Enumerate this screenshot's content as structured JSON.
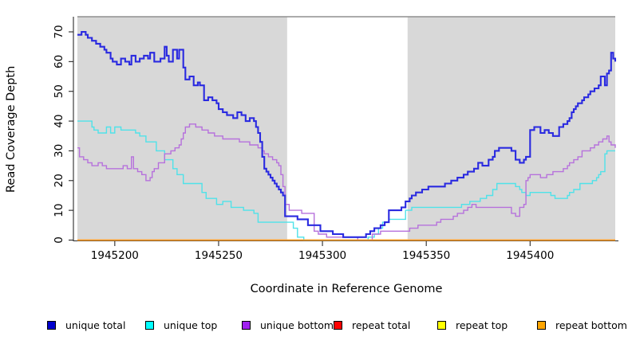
{
  "figure": {
    "x_axis_title": "Coordinate in Reference Genome",
    "y_axis_title": "Read Coverage Depth"
  },
  "legend": {
    "items": [
      {
        "label": "unique total",
        "swatch_color": "#0000cd",
        "x": 59
      },
      {
        "label": "unique top",
        "swatch_color": "#00ffff",
        "x": 182
      },
      {
        "label": "unique bottom",
        "swatch_color": "#a020f0",
        "x": 303
      },
      {
        "label": "repeat total",
        "swatch_color": "#ff0000",
        "x": 418
      },
      {
        "label": "repeat top",
        "swatch_color": "#ffff00",
        "x": 548
      },
      {
        "label": "repeat bottom",
        "swatch_color": "#ffa500",
        "x": 673
      }
    ]
  },
  "chart_data": {
    "type": "line",
    "step": true,
    "title": "",
    "xlabel": "Coordinate in Reference Genome",
    "ylabel": "Read Coverage Depth",
    "xlim": [
      1945182,
      1945441
    ],
    "ylim": [
      0,
      70
    ],
    "x_ticks": [
      1945200,
      1945250,
      1945300,
      1945350,
      1945400
    ],
    "y_ticks": [
      0,
      10,
      20,
      30,
      40,
      50,
      60,
      70
    ],
    "grid": false,
    "legend_position": "bottom",
    "background": {
      "plot_bg": "#d8d8d8",
      "highlight_region": {
        "x0": 1945283,
        "x1": 1945341,
        "color": "#ffffff"
      },
      "top_border_color": "#8f8f8f",
      "axis_color": "#2a2a2a"
    },
    "series": [
      {
        "name": "unique total",
        "color": "#0000cd",
        "line_color": "#2a2ae0",
        "width": 2.1,
        "points": [
          [
            1945182,
            69
          ],
          [
            1945184,
            70
          ],
          [
            1945186,
            69
          ],
          [
            1945187,
            68
          ],
          [
            1945189,
            67
          ],
          [
            1945191,
            66
          ],
          [
            1945193,
            65
          ],
          [
            1945195,
            64
          ],
          [
            1945196,
            63
          ],
          [
            1945198,
            61
          ],
          [
            1945199,
            60
          ],
          [
            1945201,
            59
          ],
          [
            1945203,
            61
          ],
          [
            1945205,
            60
          ],
          [
            1945207,
            59
          ],
          [
            1945208,
            62
          ],
          [
            1945210,
            60
          ],
          [
            1945212,
            61
          ],
          [
            1945214,
            62
          ],
          [
            1945216,
            61
          ],
          [
            1945217,
            63
          ],
          [
            1945219,
            60
          ],
          [
            1945222,
            61
          ],
          [
            1945224,
            65
          ],
          [
            1945225,
            62
          ],
          [
            1945226,
            60
          ],
          [
            1945228,
            64
          ],
          [
            1945230,
            61
          ],
          [
            1945231,
            64
          ],
          [
            1945233,
            58
          ],
          [
            1945234,
            54
          ],
          [
            1945236,
            55
          ],
          [
            1945238,
            52
          ],
          [
            1945240,
            53
          ],
          [
            1945241,
            52
          ],
          [
            1945243,
            47
          ],
          [
            1945245,
            48
          ],
          [
            1945247,
            47
          ],
          [
            1945249,
            46
          ],
          [
            1945250,
            44
          ],
          [
            1945252,
            43
          ],
          [
            1945254,
            42
          ],
          [
            1945257,
            41
          ],
          [
            1945259,
            43
          ],
          [
            1945261,
            42
          ],
          [
            1945263,
            40
          ],
          [
            1945265,
            41
          ],
          [
            1945267,
            40
          ],
          [
            1945268,
            38
          ],
          [
            1945269,
            36
          ],
          [
            1945270,
            33
          ],
          [
            1945271,
            28
          ],
          [
            1945272,
            24
          ],
          [
            1945273,
            23
          ],
          [
            1945274,
            22
          ],
          [
            1945275,
            21
          ],
          [
            1945276,
            20
          ],
          [
            1945277,
            19
          ],
          [
            1945278,
            18
          ],
          [
            1945279,
            17
          ],
          [
            1945280,
            16
          ],
          [
            1945281,
            15
          ],
          [
            1945282,
            8
          ],
          [
            1945288,
            7
          ],
          [
            1945293,
            5
          ],
          [
            1945299,
            3
          ],
          [
            1945305,
            2
          ],
          [
            1945310,
            1
          ],
          [
            1945321,
            2
          ],
          [
            1945323,
            3
          ],
          [
            1945325,
            4
          ],
          [
            1945328,
            5
          ],
          [
            1945330,
            6
          ],
          [
            1945332,
            10
          ],
          [
            1945338,
            11
          ],
          [
            1945340,
            13
          ],
          [
            1945342,
            14
          ],
          [
            1945343,
            15
          ],
          [
            1945345,
            16
          ],
          [
            1945348,
            17
          ],
          [
            1945351,
            18
          ],
          [
            1945359,
            19
          ],
          [
            1945362,
            20
          ],
          [
            1945365,
            21
          ],
          [
            1945368,
            22
          ],
          [
            1945370,
            23
          ],
          [
            1945373,
            24
          ],
          [
            1945375,
            26
          ],
          [
            1945377,
            25
          ],
          [
            1945380,
            27
          ],
          [
            1945382,
            28
          ],
          [
            1945383,
            30
          ],
          [
            1945385,
            31
          ],
          [
            1945391,
            30
          ],
          [
            1945393,
            27
          ],
          [
            1945395,
            26
          ],
          [
            1945397,
            27
          ],
          [
            1945398,
            28
          ],
          [
            1945400,
            37
          ],
          [
            1945402,
            38
          ],
          [
            1945405,
            36
          ],
          [
            1945407,
            37
          ],
          [
            1945409,
            36
          ],
          [
            1945411,
            35
          ],
          [
            1945414,
            38
          ],
          [
            1945416,
            39
          ],
          [
            1945418,
            40
          ],
          [
            1945419,
            41
          ],
          [
            1945420,
            43
          ],
          [
            1945421,
            44
          ],
          [
            1945422,
            45
          ],
          [
            1945423,
            46
          ],
          [
            1945425,
            47
          ],
          [
            1945426,
            48
          ],
          [
            1945428,
            49
          ],
          [
            1945429,
            50
          ],
          [
            1945431,
            51
          ],
          [
            1945433,
            52
          ],
          [
            1945434,
            55
          ],
          [
            1945436,
            52
          ],
          [
            1945437,
            56
          ],
          [
            1945438,
            57
          ],
          [
            1945439,
            63
          ],
          [
            1945440,
            61
          ],
          [
            1945441,
            60
          ]
        ]
      },
      {
        "name": "unique top",
        "color": "#00ffff",
        "line_color": "#4fe2e9",
        "width": 1.4,
        "points": [
          [
            1945182,
            40
          ],
          [
            1945189,
            38
          ],
          [
            1945190,
            37
          ],
          [
            1945192,
            36
          ],
          [
            1945196,
            38
          ],
          [
            1945198,
            36
          ],
          [
            1945200,
            38
          ],
          [
            1945203,
            37
          ],
          [
            1945210,
            36
          ],
          [
            1945212,
            35
          ],
          [
            1945215,
            33
          ],
          [
            1945220,
            30
          ],
          [
            1945224,
            27
          ],
          [
            1945228,
            24
          ],
          [
            1945230,
            22
          ],
          [
            1945233,
            19
          ],
          [
            1945242,
            16
          ],
          [
            1945244,
            14
          ],
          [
            1945249,
            12
          ],
          [
            1945252,
            13
          ],
          [
            1945256,
            11
          ],
          [
            1945262,
            10
          ],
          [
            1945267,
            9
          ],
          [
            1945269,
            6
          ],
          [
            1945286,
            4
          ],
          [
            1945288,
            1
          ],
          [
            1945291,
            0
          ],
          [
            1945322,
            1
          ],
          [
            1945325,
            2
          ],
          [
            1945327,
            4
          ],
          [
            1945329,
            6
          ],
          [
            1945332,
            7
          ],
          [
            1945340,
            10
          ],
          [
            1945343,
            11
          ],
          [
            1945367,
            12
          ],
          [
            1945371,
            13
          ],
          [
            1945376,
            14
          ],
          [
            1945379,
            15
          ],
          [
            1945382,
            17
          ],
          [
            1945384,
            19
          ],
          [
            1945393,
            18
          ],
          [
            1945395,
            17
          ],
          [
            1945396,
            16
          ],
          [
            1945398,
            15
          ],
          [
            1945400,
            16
          ],
          [
            1945410,
            15
          ],
          [
            1945412,
            14
          ],
          [
            1945418,
            15
          ],
          [
            1945419,
            16
          ],
          [
            1945421,
            17
          ],
          [
            1945424,
            19
          ],
          [
            1945430,
            20
          ],
          [
            1945432,
            21
          ],
          [
            1945433,
            22
          ],
          [
            1945434,
            23
          ],
          [
            1945436,
            29
          ],
          [
            1945437,
            30
          ],
          [
            1945441,
            30
          ]
        ]
      },
      {
        "name": "unique bottom",
        "color": "#a020f0",
        "line_color": "#b671dc",
        "width": 1.4,
        "points": [
          [
            1945182,
            31
          ],
          [
            1945183,
            28
          ],
          [
            1945185,
            27
          ],
          [
            1945187,
            26
          ],
          [
            1945189,
            25
          ],
          [
            1945192,
            26
          ],
          [
            1945194,
            25
          ],
          [
            1945196,
            24
          ],
          [
            1945204,
            25
          ],
          [
            1945206,
            24
          ],
          [
            1945208,
            28
          ],
          [
            1945209,
            24
          ],
          [
            1945211,
            23
          ],
          [
            1945213,
            22
          ],
          [
            1945215,
            20
          ],
          [
            1945217,
            21
          ],
          [
            1945218,
            23
          ],
          [
            1945219,
            24
          ],
          [
            1945221,
            26
          ],
          [
            1945224,
            29
          ],
          [
            1945227,
            30
          ],
          [
            1945229,
            31
          ],
          [
            1945231,
            32
          ],
          [
            1945232,
            34
          ],
          [
            1945233,
            36
          ],
          [
            1945234,
            38
          ],
          [
            1945236,
            39
          ],
          [
            1945239,
            38
          ],
          [
            1945242,
            37
          ],
          [
            1945245,
            36
          ],
          [
            1945248,
            35
          ],
          [
            1945252,
            34
          ],
          [
            1945260,
            33
          ],
          [
            1945265,
            32
          ],
          [
            1945269,
            31
          ],
          [
            1945271,
            30
          ],
          [
            1945272,
            29
          ],
          [
            1945274,
            28
          ],
          [
            1945276,
            27
          ],
          [
            1945278,
            26
          ],
          [
            1945279,
            25
          ],
          [
            1945280,
            22
          ],
          [
            1945281,
            18
          ],
          [
            1945282,
            12
          ],
          [
            1945284,
            10
          ],
          [
            1945290,
            9
          ],
          [
            1945296,
            3
          ],
          [
            1945298,
            2
          ],
          [
            1945302,
            1
          ],
          [
            1945317,
            0
          ],
          [
            1945324,
            2
          ],
          [
            1945328,
            3
          ],
          [
            1945342,
            4
          ],
          [
            1945346,
            5
          ],
          [
            1945355,
            6
          ],
          [
            1945357,
            7
          ],
          [
            1945363,
            8
          ],
          [
            1945365,
            9
          ],
          [
            1945368,
            10
          ],
          [
            1945370,
            11
          ],
          [
            1945372,
            12
          ],
          [
            1945374,
            11
          ],
          [
            1945389,
            11
          ],
          [
            1945391,
            9
          ],
          [
            1945393,
            8
          ],
          [
            1945395,
            11
          ],
          [
            1945397,
            12
          ],
          [
            1945398,
            20
          ],
          [
            1945399,
            21
          ],
          [
            1945400,
            22
          ],
          [
            1945405,
            21
          ],
          [
            1945408,
            22
          ],
          [
            1945411,
            23
          ],
          [
            1945416,
            24
          ],
          [
            1945418,
            25
          ],
          [
            1945419,
            26
          ],
          [
            1945421,
            27
          ],
          [
            1945423,
            28
          ],
          [
            1945425,
            30
          ],
          [
            1945429,
            31
          ],
          [
            1945431,
            32
          ],
          [
            1945433,
            33
          ],
          [
            1945435,
            34
          ],
          [
            1945437,
            35
          ],
          [
            1945438,
            33
          ],
          [
            1945439,
            32
          ],
          [
            1945441,
            31
          ]
        ]
      },
      {
        "name": "repeat total",
        "color": "#ff0000",
        "line_color": "#e04b4b",
        "width": 1.3,
        "points": [
          [
            1945182,
            0
          ],
          [
            1945441,
            0
          ]
        ]
      },
      {
        "name": "repeat top",
        "color": "#ffff00",
        "line_color": "#f2e94e",
        "width": 1.3,
        "points": [
          [
            1945182,
            0
          ],
          [
            1945441,
            0
          ]
        ]
      },
      {
        "name": "repeat bottom",
        "color": "#ffa500",
        "line_color": "#ff9e26",
        "width": 1.7,
        "points": [
          [
            1945182,
            0
          ],
          [
            1945441,
            0
          ]
        ]
      }
    ]
  }
}
